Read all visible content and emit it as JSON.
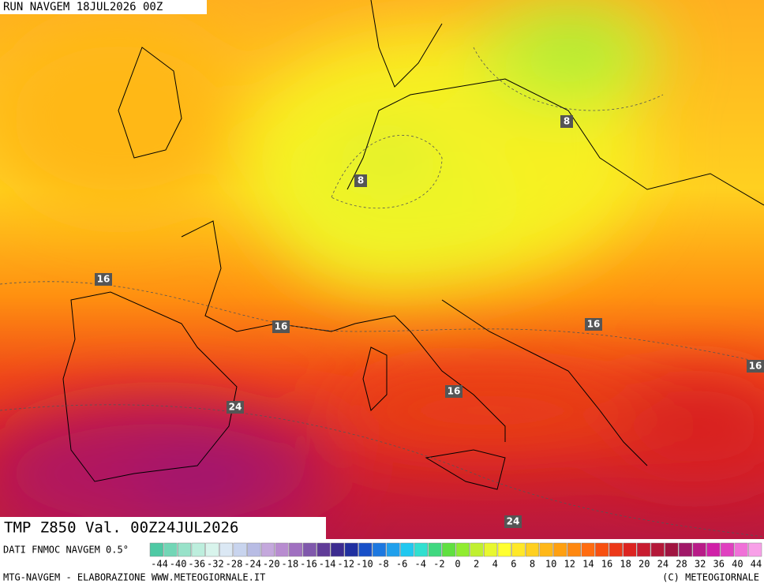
{
  "header": {
    "run": "RUN NAVGEM 18JUL2026 00Z"
  },
  "map": {
    "contour_labels": [
      8,
      8,
      16,
      16,
      16,
      16,
      16,
      24,
      24
    ]
  },
  "title": "TMP  Z850  Val. 00Z24JUL2026",
  "source": "DATI FNMOC NAVGEM 0.5°",
  "colorbar": {
    "colors": [
      "#4ec9a4",
      "#72d6b6",
      "#98e2c9",
      "#bdeedd",
      "#d8f4ec",
      "#dbe8f4",
      "#c8d4ee",
      "#b8bce4",
      "#c4a8dc",
      "#b88cd0",
      "#a070c0",
      "#8058ac",
      "#603c98",
      "#3c2c90",
      "#2030a0",
      "#1850c8",
      "#1c78e0",
      "#20a0ec",
      "#20c8f0",
      "#30e0d0",
      "#40d880",
      "#60e040",
      "#90ec30",
      "#c0f030",
      "#e8f830",
      "#ffff30",
      "#ffe828",
      "#ffd020",
      "#ffb818",
      "#ffa010",
      "#ff8810",
      "#ff6c10",
      "#f85010",
      "#ec3818",
      "#dc2420",
      "#c81c30",
      "#b41838",
      "#a01440",
      "#a01868",
      "#b81c88",
      "#d020a8",
      "#e040c0",
      "#f070d8",
      "#f8a0e8"
    ],
    "labels": [
      -44,
      -40,
      -36,
      -32,
      -28,
      -24,
      -20,
      -18,
      -16,
      -14,
      -12,
      -10,
      -8,
      -6,
      -4,
      -2,
      0,
      2,
      4,
      6,
      8,
      10,
      12,
      14,
      16,
      18,
      20,
      24,
      28,
      32,
      36,
      40,
      44
    ]
  },
  "footer": {
    "left": "MTG-NAVGEM - ELABORAZIONE WWW.METEOGIORNALE.IT",
    "right": "(C) METEOGIORNALE"
  }
}
